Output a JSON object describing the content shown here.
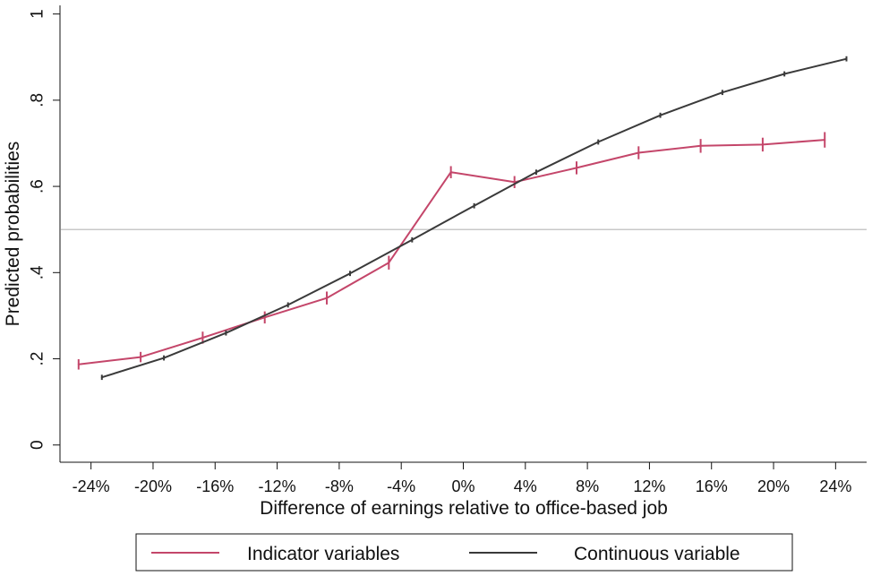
{
  "chart_data": {
    "type": "line",
    "xlabel": "Difference of earnings relative to office-based job",
    "ylabel": "Predicted probabilities",
    "xlim": [
      -26,
      26
    ],
    "ylim": [
      -0.04,
      1.02
    ],
    "x_ticks": [
      -24,
      -20,
      -16,
      -12,
      -8,
      -4,
      0,
      4,
      8,
      12,
      16,
      20,
      24
    ],
    "x_tick_labels": [
      "-24%",
      "-20%",
      "-16%",
      "-12%",
      "-8%",
      "-4%",
      "0%",
      "4%",
      "8%",
      "12%",
      "16%",
      "20%",
      "24%"
    ],
    "y_ticks": [
      0,
      0.2,
      0.4,
      0.6,
      0.8,
      1
    ],
    "y_tick_labels": [
      "0",
      ".2",
      ".4",
      ".6",
      ".8",
      "1"
    ],
    "reference_line_y": 0.5,
    "grid": false,
    "legend_position": "bottom",
    "series": [
      {
        "name": "Indicator variables",
        "color": "#c4466a",
        "x": [
          -24.8,
          -20.8,
          -16.8,
          -12.8,
          -8.8,
          -4.8,
          -0.8,
          3.3,
          7.3,
          11.3,
          15.3,
          19.3,
          23.3
        ],
        "y": [
          0.187,
          0.204,
          0.249,
          0.296,
          0.341,
          0.423,
          0.633,
          0.61,
          0.643,
          0.678,
          0.694,
          0.697,
          0.708
        ],
        "ci_half": [
          0.012,
          0.012,
          0.014,
          0.014,
          0.015,
          0.016,
          0.014,
          0.014,
          0.015,
          0.015,
          0.016,
          0.016,
          0.018
        ]
      },
      {
        "name": "Continuous variable",
        "color": "#3a3a3a",
        "x": [
          -23.3,
          -19.3,
          -15.3,
          -11.3,
          -7.3,
          -3.3,
          0.7,
          4.7,
          8.7,
          12.7,
          16.7,
          20.7,
          24.7
        ],
        "y": [
          0.157,
          0.202,
          0.26,
          0.325,
          0.398,
          0.476,
          0.555,
          0.633,
          0.703,
          0.765,
          0.818,
          0.861,
          0.896
        ],
        "ci_half": [
          0.006,
          0.006,
          0.006,
          0.006,
          0.006,
          0.006,
          0.006,
          0.006,
          0.006,
          0.006,
          0.006,
          0.006,
          0.006
        ]
      }
    ]
  }
}
